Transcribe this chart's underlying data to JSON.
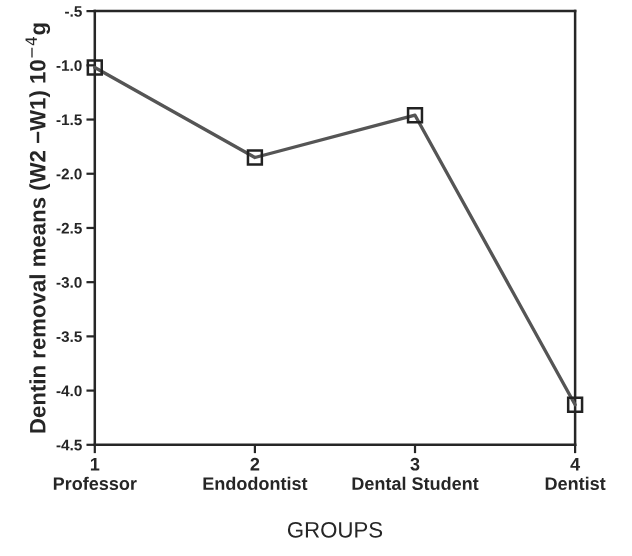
{
  "chart_data": {
    "type": "line",
    "xlabel": "GROUPS",
    "ylabel": "Dentin removal means (W2 −W1) 10$^{−4}$g",
    "categories": [
      "1\nProfessor",
      "2\nEndodontist",
      "3\nDental Student",
      "4\nDentist"
    ],
    "series": [
      {
        "color": "#555555",
        "values": [
          -1.02,
          -1.85,
          -1.46,
          -4.13
        ]
      }
    ],
    "ylim": [
      -4.5,
      -0.5
    ],
    "yticks": [
      {
        "value": -4.5,
        "label": "-4.5"
      },
      {
        "value": -4.0,
        "label": "-4.0"
      },
      {
        "value": -3.5,
        "label": "-3.5"
      },
      {
        "value": -3.0,
        "label": "-3.0"
      },
      {
        "value": -2.5,
        "label": "-2.5"
      },
      {
        "value": -2.0,
        "label": "-2.0"
      },
      {
        "value": -1.5,
        "label": "-1.5"
      },
      {
        "value": -1.0,
        "label": "-1.0"
      },
      {
        "value": -0.5,
        "label": "-.5"
      }
    ],
    "marker": "square",
    "line_style": "solid",
    "grid": false,
    "legend": false
  }
}
